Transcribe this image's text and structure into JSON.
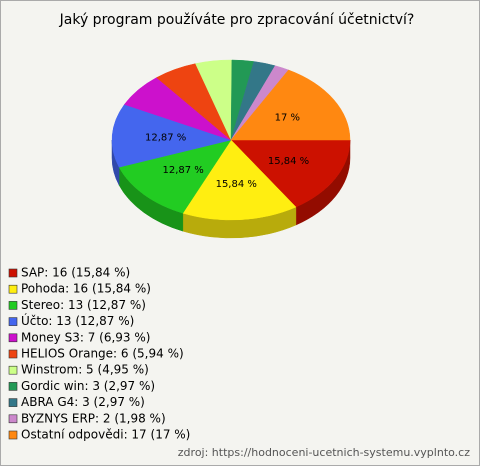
{
  "chart_data": {
    "type": "pie3d",
    "title": "Jaký program používáte pro zpracování účetnictví?",
    "categories": [
      "SAP: 16 (15,84 %)",
      "Pohoda: 16 (15,84 %)",
      "Stereo: 13 (12,87 %)",
      "Účto: 13 (12,87 %)",
      "Money S3: 7 (6,93 %)",
      "HELIOS Orange: 6 (5,94 %)",
      "Winstrom: 5 (4,95 %)",
      "Gordic win: 3 (2,97 %)",
      "ABRA G4: 3 (2,97 %)",
      "BYZNYS ERP: 2 (1,98 %)",
      "Ostatní odpovědi: 17 (17 %)"
    ],
    "values": [
      15.84,
      15.84,
      12.87,
      12.87,
      6.93,
      5.94,
      4.95,
      2.97,
      2.97,
      1.98,
      17
    ],
    "value_labels": [
      "15,84 %",
      "15,84 %",
      "12,87 %",
      "12,87 %",
      null,
      null,
      null,
      null,
      null,
      null,
      "17 %"
    ],
    "colors": [
      "#cc1100",
      "#ffee11",
      "#22cc22",
      "#4466ee",
      "#cc11cc",
      "#ee4411",
      "#ccff88",
      "#229955",
      "#337788",
      "#cc88cc",
      "#ff8811"
    ],
    "source": "zdroj: https://hodnoceni-ucetnich-systemu.vyplnto.cz"
  }
}
